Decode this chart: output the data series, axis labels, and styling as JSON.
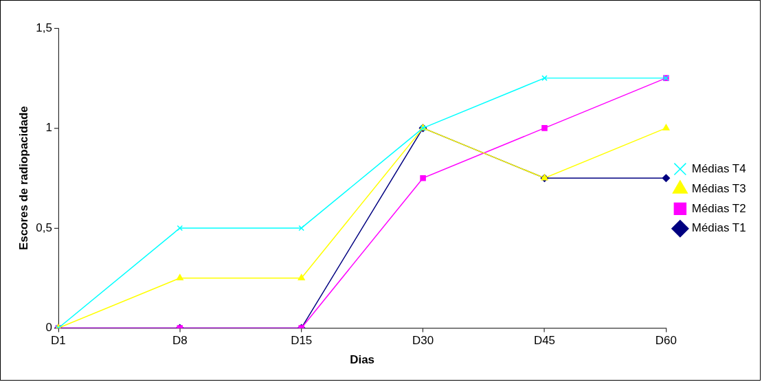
{
  "chart_data": {
    "type": "line",
    "xlabel": "Dias",
    "ylabel": "Escores de radiopacidade",
    "categories": [
      "D1",
      "D8",
      "D15",
      "D30",
      "D45",
      "D60"
    ],
    "series": [
      {
        "name": "Médias T1",
        "color": "#000080",
        "marker": "diamond",
        "values": [
          0,
          0,
          0,
          1,
          0.75,
          0.75
        ]
      },
      {
        "name": "Médias T2",
        "color": "#ff00ff",
        "marker": "square",
        "values": [
          0,
          0,
          0,
          0.75,
          1,
          1.25
        ]
      },
      {
        "name": "Médias T3",
        "color": "#ffff00",
        "marker": "triangle",
        "values": [
          0,
          0.25,
          0.25,
          1,
          0.75,
          1
        ]
      },
      {
        "name": "Médias T4",
        "color": "#00ffff",
        "marker": "cross",
        "values": [
          0,
          0.5,
          0.5,
          1,
          1.25,
          1.25
        ]
      }
    ],
    "ylim": [
      0,
      1.5
    ],
    "yticks": [
      {
        "value": 0,
        "label": "0"
      },
      {
        "value": 0.5,
        "label": "0,5"
      },
      {
        "value": 1,
        "label": "1"
      },
      {
        "value": 1.5,
        "label": "1,5"
      }
    ],
    "grid": false,
    "legend": "right",
    "line_style": "solid"
  }
}
